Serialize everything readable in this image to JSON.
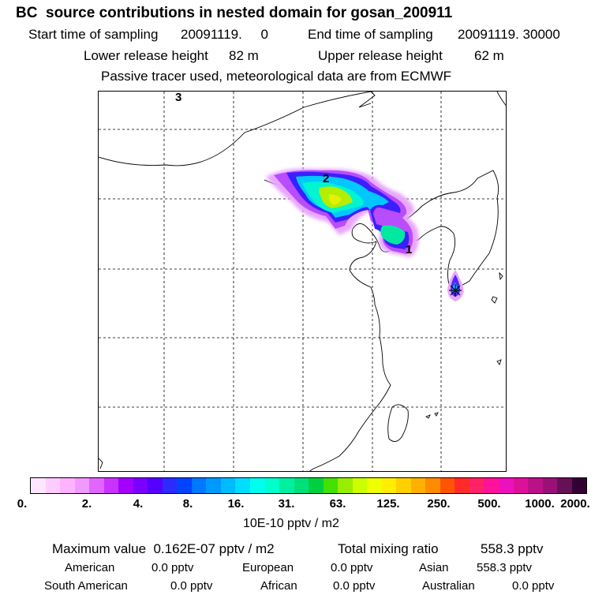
{
  "header": {
    "title": "BC  source contributions in nested domain for gosan_200911",
    "start_label": "Start time of sampling",
    "start_value": "20091119.     0",
    "end_label": "End time of sampling",
    "end_value": "20091119. 30000",
    "lower_label": "Lower release height",
    "lower_value": "82 m",
    "upper_label": "Upper release height",
    "upper_value": "62 m",
    "note": "Passive tracer used, meteorological data are from ECMWF"
  },
  "map": {
    "markers": [
      "3",
      "2",
      "1"
    ],
    "receptor": "gosan"
  },
  "colorbar": {
    "colors": [
      "#ffe6ff",
      "#ffccff",
      "#ffb3ff",
      "#f099ff",
      "#e066ff",
      "#c933ff",
      "#a500ff",
      "#7a00ff",
      "#5500ff",
      "#2b2bff",
      "#0044ff",
      "#0077ff",
      "#0099ff",
      "#00bbff",
      "#00ddff",
      "#00ffee",
      "#00ffcc",
      "#00f0a0",
      "#00e07a",
      "#00d040",
      "#44e000",
      "#99ee00",
      "#ccff00",
      "#eeff00",
      "#ffee00",
      "#ffd000",
      "#ffb000",
      "#ff8c00",
      "#ff5500",
      "#ff2a2a",
      "#ff2266",
      "#ff1199",
      "#ee11bb",
      "#dd1199",
      "#bb1188",
      "#991177",
      "#661155",
      "#330033"
    ],
    "ticks": [
      "0.",
      "2.",
      "4.",
      "8.",
      "16.",
      "31.",
      "63.",
      "125.",
      "250.",
      "500.",
      "1000.",
      "2000."
    ],
    "unit_label": "10E-10 pptv / m2"
  },
  "footer": {
    "max_label": "Maximum value  0.162E-07 pptv / m2",
    "total_label": "Total mixing ratio",
    "total_value": "558.3 pptv",
    "american_label": "American",
    "american_value": "0.0 pptv",
    "european_label": "European",
    "european_value": "0.0 pptv",
    "asian_label": "Asian",
    "asian_value": "558.3 pptv",
    "south_american_label": "South American",
    "south_american_value": "0.0 pptv",
    "african_label": "African",
    "african_value": "0.0 pptv",
    "australian_label": "Australian",
    "australian_value": "0.0 pptv"
  }
}
